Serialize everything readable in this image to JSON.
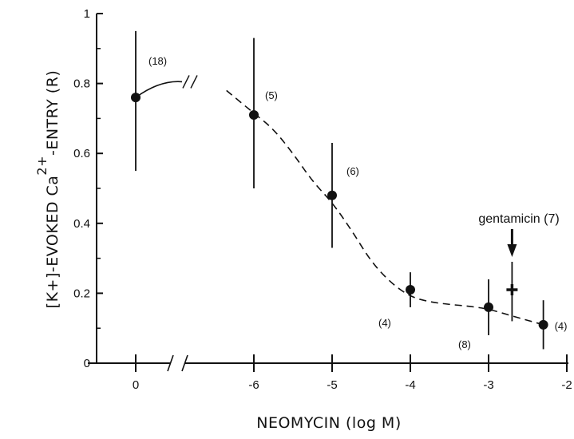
{
  "chart_data": {
    "type": "scatter",
    "title": "",
    "xlabel": "NEOMYCIN (log M)",
    "ylabel": {
      "before": "[K+]-EVOKED Ca",
      "superscript": "2+",
      "after": "-ENTRY (R)"
    },
    "ylim": [
      0,
      1
    ],
    "y_ticks": [
      "0",
      "0.2",
      "0.4",
      "0.6",
      "0.8",
      "1"
    ],
    "x_ticks": [
      {
        "value": "control",
        "label": "0"
      },
      {
        "value": -6,
        "label": "-6"
      },
      {
        "value": -5,
        "label": "-5"
      },
      {
        "value": -4,
        "label": "-4"
      },
      {
        "value": -3,
        "label": "-3"
      },
      {
        "value": -2,
        "label": "-2"
      }
    ],
    "xlim_log": [
      -6.65,
      -2
    ],
    "axis_break": true,
    "grid": false,
    "series": [
      {
        "marker": "circle",
        "points": [
          {
            "x": "control",
            "y": 0.76,
            "err_low": 0.55,
            "err_high": 0.95,
            "n": "(18)"
          },
          {
            "x": -6,
            "y": 0.71,
            "err_low": 0.5,
            "err_high": 0.93,
            "n": "(5)"
          },
          {
            "x": -5,
            "y": 0.48,
            "err_low": 0.33,
            "err_high": 0.63,
            "n": "(6)"
          },
          {
            "x": -4,
            "y": 0.21,
            "err_low": 0.16,
            "err_high": 0.26,
            "n": "(4)"
          },
          {
            "x": -3,
            "y": 0.16,
            "err_low": 0.08,
            "err_high": 0.24,
            "n": "(8)"
          },
          {
            "x": -2.3,
            "y": 0.11,
            "err_low": 0.04,
            "err_high": 0.18,
            "n": "(4)"
          }
        ]
      },
      {
        "marker": "plus",
        "points": [
          {
            "x": -2.7,
            "y": 0.21,
            "err_low": 0.12,
            "err_high": 0.29
          }
        ]
      }
    ],
    "annotations": [
      {
        "text": "gentamicin (7)",
        "points_to_x": -2.7
      }
    ],
    "fit_curve": {
      "style": "dashed",
      "points": [
        [
          -6.35,
          0.78
        ],
        [
          -6,
          0.715
        ],
        [
          -5.75,
          0.67
        ],
        [
          -5.5,
          0.6
        ],
        [
          -5.25,
          0.52
        ],
        [
          -5,
          0.46
        ],
        [
          -4.75,
          0.38
        ],
        [
          -4.5,
          0.29
        ],
        [
          -4.25,
          0.23
        ],
        [
          -4,
          0.19
        ],
        [
          -3.75,
          0.175
        ],
        [
          -3.5,
          0.168
        ],
        [
          -3.25,
          0.163
        ],
        [
          -3,
          0.155
        ],
        [
          -2.7,
          0.135
        ],
        [
          -2.3,
          0.11
        ]
      ]
    }
  }
}
